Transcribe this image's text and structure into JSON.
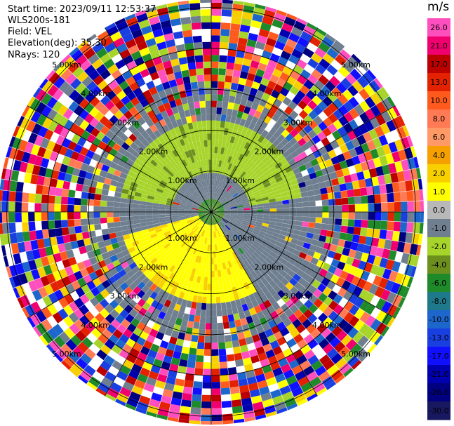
{
  "header": {
    "start_time": "Start time: 2023/09/11 12:53:37",
    "instrument": "WLS200s-181",
    "field": "Field: VEL",
    "elevation": "Elevation(deg): 35.30",
    "nrays": "NRays: 120"
  },
  "chart_data": {
    "type": "heatmap",
    "projection": "polar-ppi",
    "field": "VEL",
    "units": "m/s",
    "n_rays": 120,
    "elevation_deg": 35.3,
    "range_rings_km": [
      1.0,
      2.0,
      3.0,
      4.0,
      5.0
    ],
    "ring_labels": [
      "1.00km",
      "2.00km",
      "3.00km",
      "4.00km",
      "5.00km"
    ],
    "spoke_angles_deg": [
      0,
      30,
      60,
      90,
      120,
      150,
      180,
      210,
      240,
      270,
      300,
      330
    ],
    "max_range_km": 5.2,
    "colorbar": {
      "label": "m/s",
      "ticks": [
        "26.0",
        "21.0",
        "17.0",
        "13.0",
        "10.0",
        "8.0",
        "6.0",
        "4.0",
        "2.0",
        "1.0",
        "0.0",
        "-1.0",
        "-2.0",
        "-4.0",
        "-6.0",
        "-8.0",
        "-10.0",
        "-13.0",
        "-17.0",
        "-21.0",
        "-26.0",
        "-30.0"
      ],
      "colors": [
        "#ff4fbf",
        "#f0006e",
        "#bb0000",
        "#e22200",
        "#ff5a1e",
        "#ff7a55",
        "#ff9966",
        "#f5a000",
        "#f8d000",
        "#ffff00",
        "#b8b8b8",
        "#6f7f8f",
        "#a6d42a",
        "#6d8f1e",
        "#1f8a2a",
        "#1e7a8a",
        "#1d66cc",
        "#1a3fe0",
        "#1010ff",
        "#0000b0",
        "#000080",
        "#181860"
      ]
    },
    "regions": [
      {
        "name": "inner-gray",
        "range_km": [
          0.0,
          2.6
        ],
        "value": -1.0
      },
      {
        "name": "north-arc-green",
        "range_km": [
          1.0,
          2.2
        ],
        "azimuth_deg": [
          270,
          90
        ],
        "value": -2.0
      },
      {
        "name": "south-arc-yellow",
        "range_km": [
          0.3,
          2.4
        ],
        "azimuth_deg": [
          150,
          260
        ],
        "value": 2.0
      },
      {
        "name": "outer-noise",
        "range_km": [
          2.6,
          5.2
        ],
        "value": "mixed"
      }
    ]
  }
}
